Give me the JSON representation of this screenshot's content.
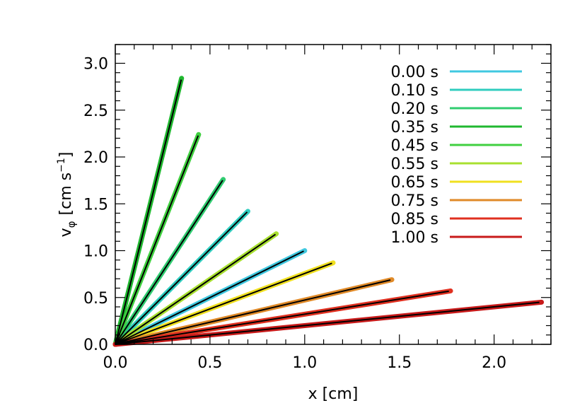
{
  "chart_data": {
    "type": "line",
    "xlabel": "x [cm]",
    "ylabel_main": "v",
    "ylabel_sub": "φ",
    "ylabel_units": "[cm s",
    "ylabel_exp": "−1",
    "ylabel_close": "]",
    "xlim": [
      0.0,
      2.3
    ],
    "ylim": [
      0.0,
      3.2
    ],
    "x_ticks": [
      {
        "value": 0.0,
        "label": "0.0"
      },
      {
        "value": 0.5,
        "label": "0.5"
      },
      {
        "value": 1.0,
        "label": "1.0"
      },
      {
        "value": 1.5,
        "label": "1.5"
      },
      {
        "value": 2.0,
        "label": "2.0"
      }
    ],
    "y_ticks": [
      {
        "value": 0.0,
        "label": "0.0"
      },
      {
        "value": 0.5,
        "label": "0.5"
      },
      {
        "value": 1.0,
        "label": "1.0"
      },
      {
        "value": 1.5,
        "label": "1.5"
      },
      {
        "value": 2.0,
        "label": "2.0"
      },
      {
        "value": 2.5,
        "label": "2.5"
      },
      {
        "value": 3.0,
        "label": "3.0"
      }
    ],
    "x_minor_step": 0.1,
    "y_minor_step": 0.1,
    "legend_position": "top-right",
    "fit_line_color": "#000000",
    "series": [
      {
        "name": "0.00 s",
        "color": "#40c8e0",
        "x_end": 1.0,
        "y_end": 1.0
      },
      {
        "name": "0.10 s",
        "color": "#30cdbf",
        "x_end": 0.7,
        "y_end": 1.42
      },
      {
        "name": "0.20 s",
        "color": "#30cc70",
        "x_end": 0.57,
        "y_end": 1.76
      },
      {
        "name": "0.35 s",
        "color": "#20b830",
        "x_end": 0.35,
        "y_end": 2.84
      },
      {
        "name": "0.45 s",
        "color": "#40d040",
        "x_end": 0.44,
        "y_end": 2.24
      },
      {
        "name": "0.55 s",
        "color": "#a8e030",
        "x_end": 0.85,
        "y_end": 1.18
      },
      {
        "name": "0.65 s",
        "color": "#f0e020",
        "x_end": 1.15,
        "y_end": 0.87
      },
      {
        "name": "0.75 s",
        "color": "#e08a28",
        "x_end": 1.46,
        "y_end": 0.69
      },
      {
        "name": "0.85 s",
        "color": "#e03020",
        "x_end": 1.77,
        "y_end": 0.57
      },
      {
        "name": "1.00 s",
        "color": "#c81a1a",
        "x_end": 2.25,
        "y_end": 0.45
      }
    ]
  }
}
